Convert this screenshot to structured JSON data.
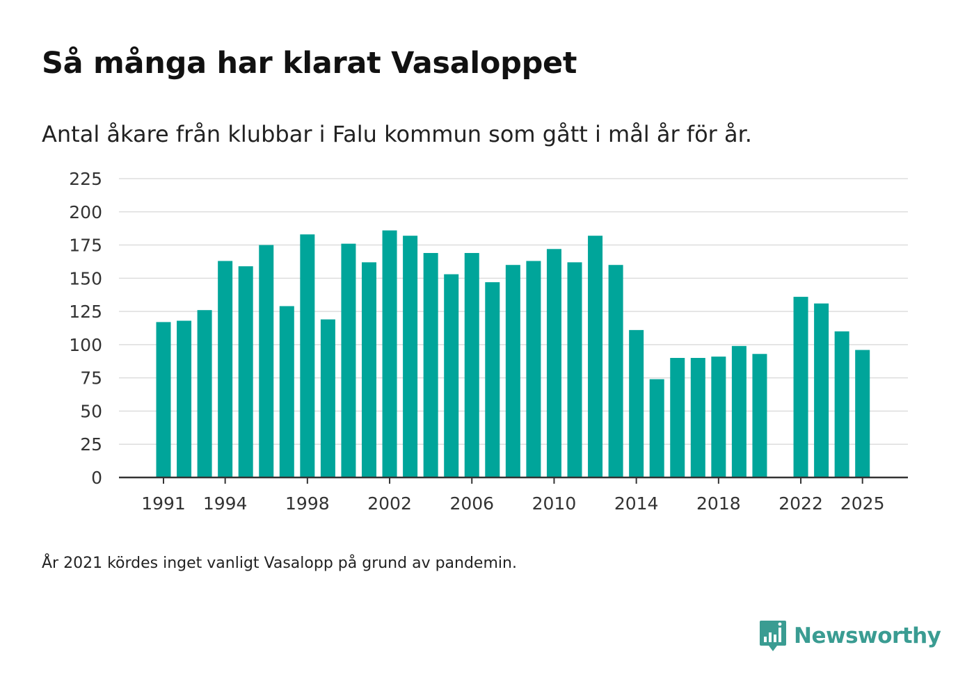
{
  "title": "Så många har klarat Vasaloppet",
  "subtitle": "Antal åkare från klubbar i Falu kommun som gått i mål år för år.",
  "footnote": "År 2021 kördes inget vanligt Vasalopp på grund av pandemin.",
  "brand": {
    "name": "Newsworthy",
    "icon": "newsworthy-bar-chart-icon",
    "color": "#3a9c92"
  },
  "colors": {
    "bar": "#00a59a",
    "grid": "#dddddd",
    "axis": "#333333",
    "text": "#333333"
  },
  "chart_data": {
    "type": "bar",
    "title": "Så många har klarat Vasaloppet",
    "xlabel": "",
    "ylabel": "",
    "ylim": [
      0,
      225
    ],
    "yticks": [
      0,
      25,
      50,
      75,
      100,
      125,
      150,
      175,
      200,
      225
    ],
    "xtick_labels": [
      "1991",
      "1994",
      "1998",
      "2002",
      "2006",
      "2010",
      "2014",
      "2018",
      "2022",
      "2025"
    ],
    "grid": true,
    "categories": [
      1991,
      1992,
      1993,
      1994,
      1995,
      1996,
      1997,
      1998,
      1999,
      2000,
      2001,
      2002,
      2003,
      2004,
      2005,
      2006,
      2007,
      2008,
      2009,
      2010,
      2011,
      2012,
      2013,
      2014,
      2015,
      2016,
      2017,
      2018,
      2019,
      2020,
      2021,
      2022,
      2023,
      2024,
      2025
    ],
    "values": [
      117,
      118,
      126,
      163,
      159,
      175,
      129,
      183,
      119,
      176,
      162,
      186,
      182,
      169,
      153,
      169,
      147,
      160,
      163,
      172,
      162,
      182,
      160,
      111,
      74,
      90,
      90,
      91,
      99,
      93,
      null,
      136,
      131,
      110,
      96
    ]
  }
}
